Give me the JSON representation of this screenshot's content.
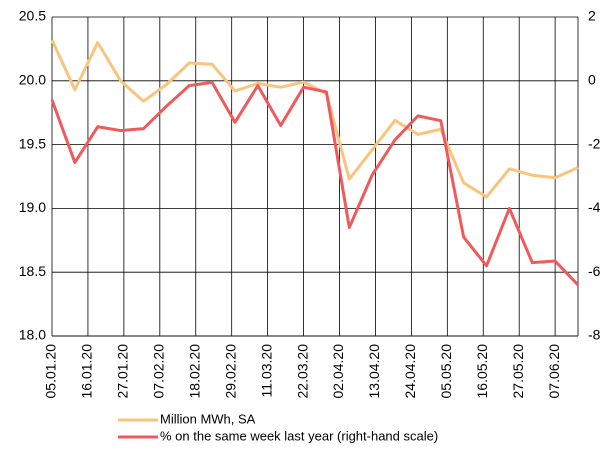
{
  "chart_data": {
    "type": "line",
    "x": [
      "2020-01-05",
      "2020-01-12",
      "2020-01-19",
      "2020-01-26",
      "2020-02-02",
      "2020-02-09",
      "2020-02-16",
      "2020-02-23",
      "2020-03-01",
      "2020-03-08",
      "2020-03-15",
      "2020-03-22",
      "2020-03-29",
      "2020-04-05",
      "2020-04-12",
      "2020-04-19",
      "2020-04-26",
      "2020-05-03",
      "2020-05-10",
      "2020-05-17",
      "2020-05-24",
      "2020-05-31",
      "2020-06-07",
      "2020-06-14"
    ],
    "xlim": [
      "2020-01-05",
      "2020-06-14"
    ],
    "xticks": [
      {
        "value": "2020-01-05",
        "label": "05.01.20"
      },
      {
        "value": "2020-01-16",
        "label": "16.01.20"
      },
      {
        "value": "2020-01-27",
        "label": "27.01.20"
      },
      {
        "value": "2020-02-07",
        "label": "07.02.20"
      },
      {
        "value": "2020-02-18",
        "label": "18.02.20"
      },
      {
        "value": "2020-02-29",
        "label": "29.02.20"
      },
      {
        "value": "2020-03-11",
        "label": "11.03.20"
      },
      {
        "value": "2020-03-22",
        "label": "22.03.20"
      },
      {
        "value": "2020-04-02",
        "label": "02.04.20"
      },
      {
        "value": "2020-04-13",
        "label": "13.04.20"
      },
      {
        "value": "2020-04-24",
        "label": "24.04.20"
      },
      {
        "value": "2020-05-05",
        "label": "05.05.20"
      },
      {
        "value": "2020-05-16",
        "label": "16.05.20"
      },
      {
        "value": "2020-05-27",
        "label": "27.05.20"
      },
      {
        "value": "2020-06-07",
        "label": "07.06.20"
      }
    ],
    "ylim": [
      18.0,
      20.5
    ],
    "yticks": [
      {
        "value": 18.0,
        "label": "18.0"
      },
      18.5,
      {
        "value": 19.0,
        "label": "19.0"
      },
      19.5,
      {
        "value": 20.0,
        "label": "20.0"
      },
      20.5
    ],
    "y2lim": [
      -8,
      2
    ],
    "y2ticks": [
      -8,
      -6,
      -4,
      -2,
      0,
      2
    ],
    "grid": true,
    "legend": "bottom",
    "series": [
      {
        "name": "Million MWh, SA",
        "color": "#f9c57e",
        "values": [
          20.32,
          19.93,
          20.3,
          20.0,
          19.84,
          19.97,
          20.14,
          20.13,
          19.92,
          19.98,
          19.95,
          19.99,
          19.9,
          19.23,
          19.46,
          19.69,
          19.58,
          19.62,
          19.2,
          19.09,
          19.31,
          19.26,
          19.24,
          19.32
        ]
      },
      {
        "name": "% on the same week last year (right-hand scale)",
        "color": "#ef5a5c",
        "axis": "y2",
        "values": [
          -0.6,
          -2.56,
          -1.44,
          -1.56,
          -1.5,
          -0.8,
          -0.15,
          -0.05,
          -1.3,
          -0.15,
          -1.4,
          -0.2,
          -0.35,
          -4.6,
          -2.95,
          -1.85,
          -1.1,
          -1.25,
          -4.9,
          -5.8,
          -4.0,
          -5.7,
          -5.65,
          -6.4
        ]
      }
    ]
  }
}
